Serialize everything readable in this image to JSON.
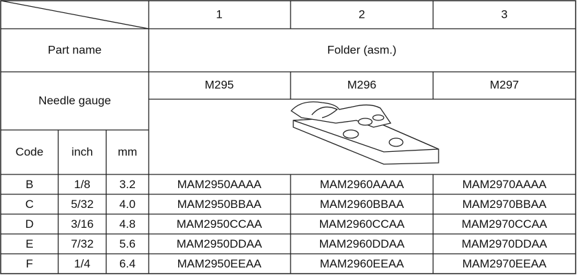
{
  "table": {
    "header": [
      "1",
      "2",
      "3"
    ],
    "part_name_label": "Part name",
    "part_name": "Folder (asm.)",
    "needle_gauge_label": "Needle gauge",
    "models": [
      "M295",
      "M296",
      "M297"
    ],
    "sub_headers": [
      "Code",
      "inch",
      "mm"
    ],
    "rows": [
      [
        "B",
        "1/8",
        "3.2",
        "MAM2950AAAA",
        "MAM2960AAAA",
        "MAM2970AAAA"
      ],
      [
        "C",
        "5/32",
        "4.0",
        "MAM2950BBAA",
        "MAM2960BBAA",
        "MAM2970BBAA"
      ],
      [
        "D",
        "3/16",
        "4.8",
        "MAM2950CCAA",
        "MAM2960CCAA",
        "MAM2970CCAA"
      ],
      [
        "E",
        "7/32",
        "5.6",
        "MAM2950DDAA",
        "MAM2960DDAA",
        "MAM2970DDAA"
      ],
      [
        "F",
        "1/4",
        "6.4",
        "MAM2950EEAA",
        "MAM2960EEAA",
        "MAM2970EEAA"
      ]
    ]
  }
}
